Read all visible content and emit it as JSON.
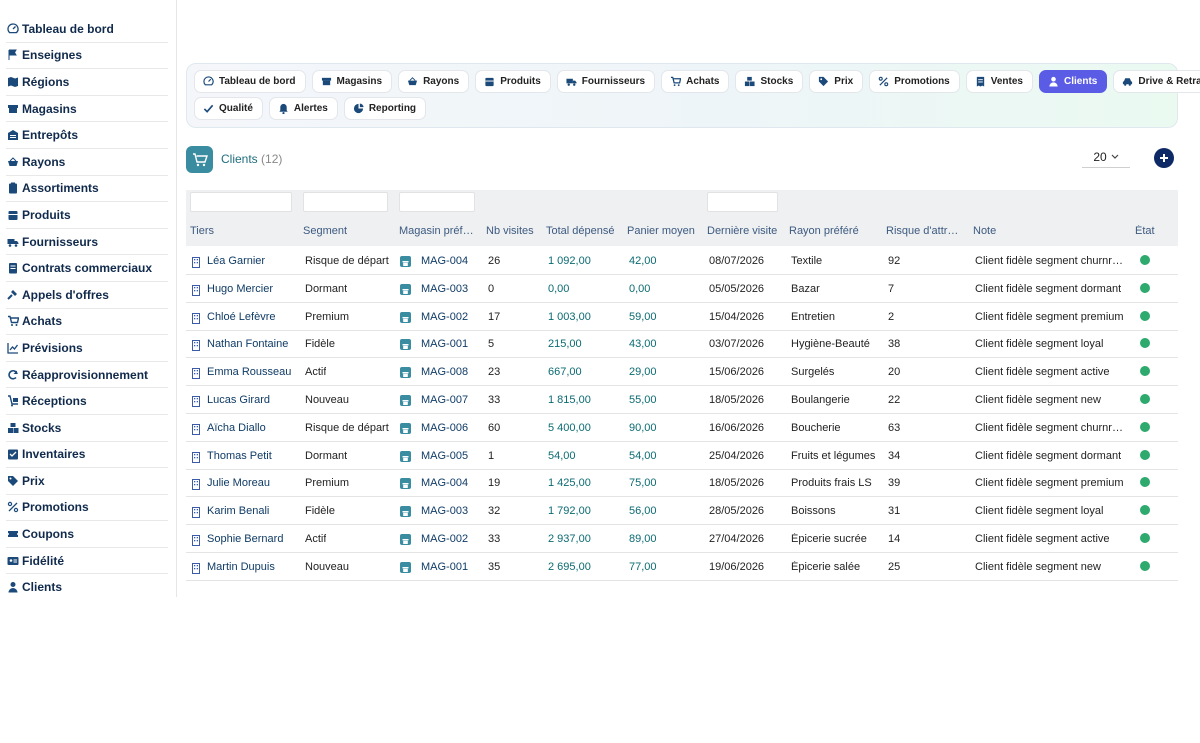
{
  "sidebar": {
    "items": [
      {
        "label": "Tableau de bord",
        "icon": "gauge-icon"
      },
      {
        "label": "Enseignes",
        "icon": "flag-icon"
      },
      {
        "label": "Régions",
        "icon": "map-icon"
      },
      {
        "label": "Magasins",
        "icon": "store-icon"
      },
      {
        "label": "Entrepôts",
        "icon": "warehouse-icon"
      },
      {
        "label": "Rayons",
        "icon": "basket-icon"
      },
      {
        "label": "Assortiments",
        "icon": "clipboard-icon"
      },
      {
        "label": "Produits",
        "icon": "box-icon"
      },
      {
        "label": "Fournisseurs",
        "icon": "truck-icon"
      },
      {
        "label": "Contrats commerciaux",
        "icon": "contract-icon"
      },
      {
        "label": "Appels d'offres",
        "icon": "gavel-icon"
      },
      {
        "label": "Achats",
        "icon": "cart-icon"
      },
      {
        "label": "Prévisions",
        "icon": "chart-line-icon"
      },
      {
        "label": "Réapprovisionnement",
        "icon": "refresh-icon"
      },
      {
        "label": "Réceptions",
        "icon": "dolly-icon"
      },
      {
        "label": "Stocks",
        "icon": "boxes-icon"
      },
      {
        "label": "Inventaires",
        "icon": "checklist-icon"
      },
      {
        "label": "Prix",
        "icon": "tags-icon"
      },
      {
        "label": "Promotions",
        "icon": "percent-icon"
      },
      {
        "label": "Coupons",
        "icon": "ticket-icon"
      },
      {
        "label": "Fidélité",
        "icon": "id-card-icon"
      },
      {
        "label": "Clients",
        "icon": "user-icon"
      }
    ]
  },
  "tabs": {
    "row1": [
      {
        "label": "Tableau de bord",
        "icon": "gauge-icon"
      },
      {
        "label": "Magasins",
        "icon": "store-icon"
      },
      {
        "label": "Rayons",
        "icon": "basket-icon"
      },
      {
        "label": "Produits",
        "icon": "box-icon"
      },
      {
        "label": "Fournisseurs",
        "icon": "truck-icon"
      },
      {
        "label": "Achats",
        "icon": "cart-icon"
      },
      {
        "label": "Stocks",
        "icon": "boxes-icon"
      },
      {
        "label": "Prix",
        "icon": "tags-icon"
      },
      {
        "label": "Promotions",
        "icon": "percent-icon"
      },
      {
        "label": "Ventes",
        "icon": "receipt-icon"
      },
      {
        "label": "Clients",
        "icon": "user-icon",
        "active": true
      },
      {
        "label": "Drive & Retrait",
        "icon": "car-icon"
      }
    ],
    "row2": [
      {
        "label": "Qualité",
        "icon": "check-icon"
      },
      {
        "label": "Alertes",
        "icon": "bell-icon"
      },
      {
        "label": "Reporting",
        "icon": "pie-icon"
      }
    ]
  },
  "list": {
    "title": "Clients",
    "count": "(12)",
    "page_size": "20",
    "accent": "#3a8ca0"
  },
  "table": {
    "columns": [
      "Tiers",
      "Segment",
      "Magasin préf…",
      "Nb visites",
      "Total dépensé",
      "Panier moyen",
      "Dernière visite",
      "Rayon préféré",
      "Risque d'attr…",
      "Note",
      "État"
    ],
    "rows": [
      {
        "tiers": "Léa Garnier",
        "segment": "Risque de départ",
        "magasin": "MAG-004",
        "visites": "26",
        "total": "1 092,00",
        "panier": "42,00",
        "derniere": "08/07/2026",
        "rayon": "Textile",
        "risque": "92",
        "note": "Client fidèle segment churnr…",
        "etat": "active"
      },
      {
        "tiers": "Hugo Mercier",
        "segment": "Dormant",
        "magasin": "MAG-003",
        "visites": "0",
        "total": "0,00",
        "panier": "0,00",
        "derniere": "05/05/2026",
        "rayon": "Bazar",
        "risque": "7",
        "note": "Client fidèle segment dormant",
        "etat": "active"
      },
      {
        "tiers": "Chloé Lefèvre",
        "segment": "Premium",
        "magasin": "MAG-002",
        "visites": "17",
        "total": "1 003,00",
        "panier": "59,00",
        "derniere": "15/04/2026",
        "rayon": "Entretien",
        "risque": "2",
        "note": "Client fidèle segment premium",
        "etat": "active"
      },
      {
        "tiers": "Nathan Fontaine",
        "segment": "Fidèle",
        "magasin": "MAG-001",
        "visites": "5",
        "total": "215,00",
        "panier": "43,00",
        "derniere": "03/07/2026",
        "rayon": "Hygiène-Beauté",
        "risque": "38",
        "note": "Client fidèle segment loyal",
        "etat": "active"
      },
      {
        "tiers": "Emma Rousseau",
        "segment": "Actif",
        "magasin": "MAG-008",
        "visites": "23",
        "total": "667,00",
        "panier": "29,00",
        "derniere": "15/06/2026",
        "rayon": "Surgelés",
        "risque": "20",
        "note": "Client fidèle segment active",
        "etat": "active"
      },
      {
        "tiers": "Lucas Girard",
        "segment": "Nouveau",
        "magasin": "MAG-007",
        "visites": "33",
        "total": "1 815,00",
        "panier": "55,00",
        "derniere": "18/05/2026",
        "rayon": "Boulangerie",
        "risque": "22",
        "note": "Client fidèle segment new",
        "etat": "active"
      },
      {
        "tiers": "Aïcha Diallo",
        "segment": "Risque de départ",
        "magasin": "MAG-006",
        "visites": "60",
        "total": "5 400,00",
        "panier": "90,00",
        "derniere": "16/06/2026",
        "rayon": "Boucherie",
        "risque": "63",
        "note": "Client fidèle segment churnr…",
        "etat": "active"
      },
      {
        "tiers": "Thomas Petit",
        "segment": "Dormant",
        "magasin": "MAG-005",
        "visites": "1",
        "total": "54,00",
        "panier": "54,00",
        "derniere": "25/04/2026",
        "rayon": "Fruits et légumes",
        "risque": "34",
        "note": "Client fidèle segment dormant",
        "etat": "active"
      },
      {
        "tiers": "Julie Moreau",
        "segment": "Premium",
        "magasin": "MAG-004",
        "visites": "19",
        "total": "1 425,00",
        "panier": "75,00",
        "derniere": "18/05/2026",
        "rayon": "Produits frais LS",
        "risque": "39",
        "note": "Client fidèle segment premium",
        "etat": "active"
      },
      {
        "tiers": "Karim Benali",
        "segment": "Fidèle",
        "magasin": "MAG-003",
        "visites": "32",
        "total": "1 792,00",
        "panier": "56,00",
        "derniere": "28/05/2026",
        "rayon": "Boissons",
        "risque": "31",
        "note": "Client fidèle segment loyal",
        "etat": "active"
      },
      {
        "tiers": "Sophie Bernard",
        "segment": "Actif",
        "magasin": "MAG-002",
        "visites": "33",
        "total": "2 937,00",
        "panier": "89,00",
        "derniere": "27/04/2026",
        "rayon": "Épicerie sucrée",
        "risque": "14",
        "note": "Client fidèle segment active",
        "etat": "active"
      },
      {
        "tiers": "Martin Dupuis",
        "segment": "Nouveau",
        "magasin": "MAG-001",
        "visites": "35",
        "total": "2 695,00",
        "panier": "77,00",
        "derniere": "19/06/2026",
        "rayon": "Épicerie salée",
        "risque": "25",
        "note": "Client fidèle segment new",
        "etat": "active"
      }
    ]
  },
  "colors": {
    "active_tab": "#5b5ce6",
    "status_ok": "#2eaa6e",
    "money": "#0b6b72",
    "link": "#0f3b66"
  }
}
